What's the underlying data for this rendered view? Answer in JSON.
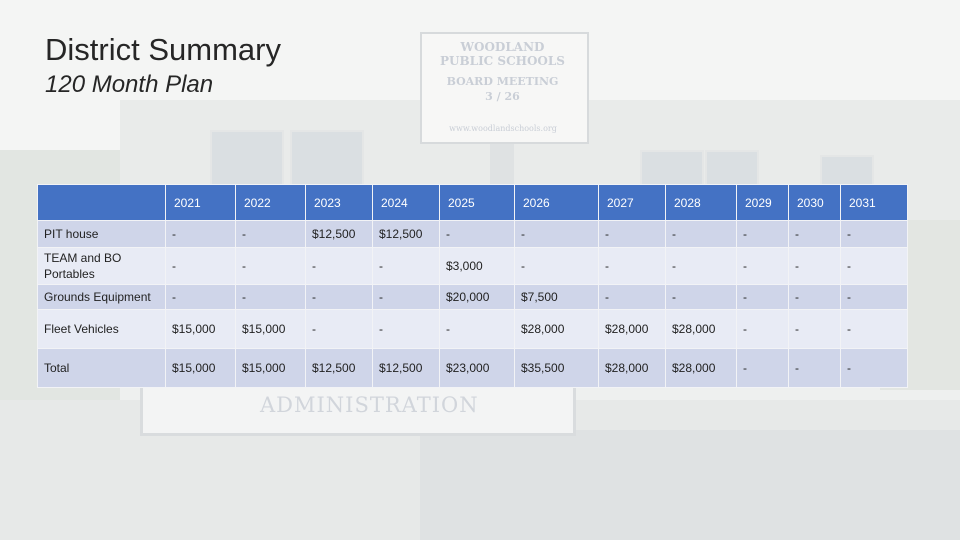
{
  "slide": {
    "title": "District Summary",
    "subtitle": "120 Month Plan"
  },
  "background_photo": {
    "sign_lines": [
      "WOODLAND",
      "PUBLIC SCHOOLS",
      "BOARD MEETING",
      "3 / 26",
      "www.woodlandschools.org"
    ],
    "admin_sign_text": "ADMINISTRATION"
  },
  "table": {
    "corner": "",
    "years": [
      "2021",
      "2022",
      "2023",
      "2024",
      "2025",
      "2026",
      "2027",
      "2028",
      "2029",
      "2030",
      "2031"
    ],
    "rows": [
      {
        "label": "PIT house",
        "values": [
          "-",
          "-",
          "$12,500",
          "$12,500",
          "-",
          "-",
          "-",
          "-",
          "-",
          "-",
          "-"
        ]
      },
      {
        "label": "TEAM and BO Portables",
        "values": [
          "-",
          "-",
          "-",
          "-",
          "$3,000",
          "-",
          "-",
          "-",
          "-",
          "-",
          "-"
        ]
      },
      {
        "label": "Grounds Equipment",
        "values": [
          "-",
          "-",
          "-",
          "-",
          "$20,000",
          "$7,500",
          "-",
          "-",
          "-",
          "-",
          "-"
        ]
      },
      {
        "label": "Fleet Vehicles",
        "values": [
          "$15,000",
          "$15,000",
          "-",
          "-",
          "-",
          "$28,000",
          "$28,000",
          "$28,000",
          "-",
          "-",
          "-"
        ]
      },
      {
        "label": "Total",
        "values": [
          "$15,000",
          "$15,000",
          "$12,500",
          "$12,500",
          "$23,000",
          "$35,500",
          "$28,000",
          "$28,000",
          "-",
          "-",
          "-"
        ]
      }
    ]
  }
}
